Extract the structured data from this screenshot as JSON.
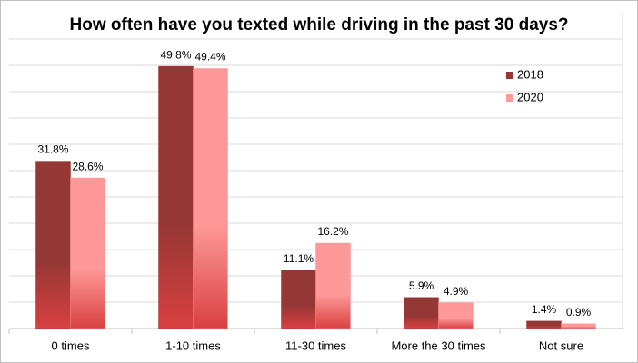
{
  "chart_data": {
    "type": "bar",
    "title": "How often have you texted while driving in the past 30 days?",
    "categories": [
      "0 times",
      "1-10 times",
      "11-30 times",
      "More the 30 times",
      "Not sure"
    ],
    "series": [
      {
        "name": "2018",
        "color": "#953735",
        "values": [
          31.8,
          49.8,
          11.1,
          5.9,
          1.4
        ],
        "value_labels": [
          "31.8%",
          "49.8%",
          "11.1%",
          "5.9%",
          "1.4%"
        ]
      },
      {
        "name": "2020",
        "color": "#ff9999",
        "values": [
          28.6,
          49.4,
          16.2,
          4.9,
          0.9
        ],
        "value_labels": [
          "28.6%",
          "49.4%",
          "16.2%",
          "4.9%",
          "0.9%"
        ]
      }
    ],
    "ylim": [
      0,
      55
    ],
    "yticks": [
      0,
      5,
      10,
      15,
      20,
      25,
      30,
      35,
      40,
      45,
      50,
      55
    ],
    "grid": true,
    "legend": "top-right"
  }
}
